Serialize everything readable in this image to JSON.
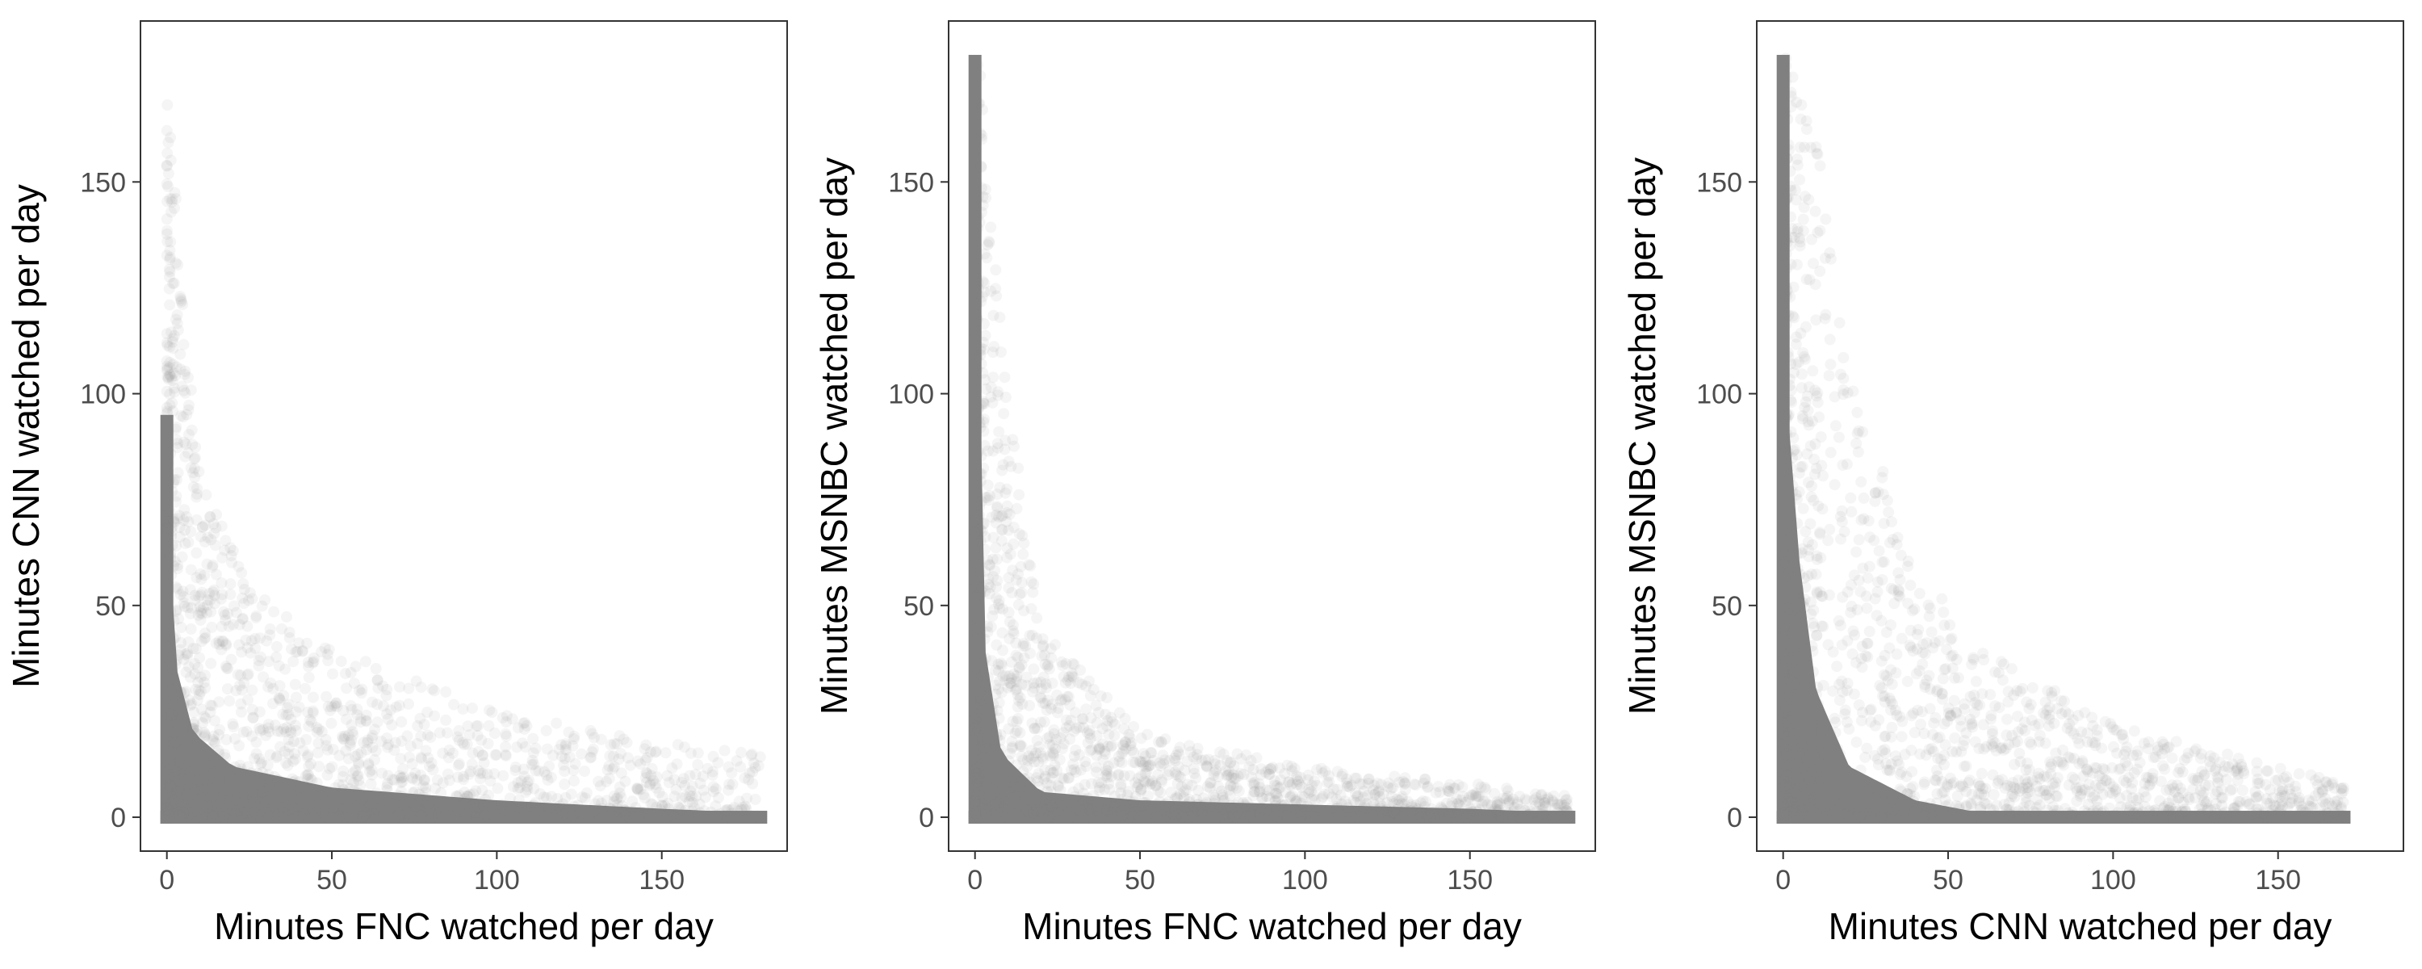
{
  "colors": {
    "point": "#808080",
    "panel_border": "#333333",
    "tick_text": "#4d4d4d",
    "axis_title": "#000000",
    "background": "#ffffff"
  },
  "chart_data": [
    {
      "type": "scatter",
      "xlabel": "Minutes FNC watched per day",
      "ylabel": "Minutes CNN watched per day",
      "xlim": [
        -8,
        188
      ],
      "ylim": [
        -8,
        188
      ],
      "xticks": [
        0,
        50,
        100,
        150
      ],
      "yticks": [
        0,
        50,
        100,
        150
      ],
      "grid": false,
      "point_alpha": 0.05,
      "density": {
        "shape": "L-shaped, dense near both axes",
        "y_edge_extent": 95,
        "x_edge_extent": 180,
        "core_envelope_curve": [
          [
            1,
            60
          ],
          [
            3,
            35
          ],
          [
            8,
            20
          ],
          [
            20,
            12
          ],
          [
            50,
            7
          ],
          [
            100,
            4
          ],
          [
            150,
            2
          ],
          [
            180,
            1
          ]
        ],
        "sparse_envelope_curve": [
          [
            1,
            170
          ],
          [
            5,
            120
          ],
          [
            10,
            80
          ],
          [
            25,
            55
          ],
          [
            50,
            40
          ],
          [
            100,
            25
          ],
          [
            150,
            18
          ],
          [
            180,
            15
          ]
        ]
      }
    },
    {
      "type": "scatter",
      "xlabel": "Minutes FNC watched per day",
      "ylabel": "Minutes MSNBC watched per day",
      "xlim": [
        -8,
        188
      ],
      "ylim": [
        -8,
        188
      ],
      "xticks": [
        0,
        50,
        100,
        150
      ],
      "yticks": [
        0,
        50,
        100,
        150
      ],
      "grid": false,
      "point_alpha": 0.05,
      "density": {
        "shape": "L-shaped, very tight to both axes",
        "y_edge_extent": 180,
        "x_edge_extent": 180,
        "core_envelope_curve": [
          [
            1,
            120
          ],
          [
            3,
            40
          ],
          [
            8,
            15
          ],
          [
            20,
            6
          ],
          [
            50,
            4
          ],
          [
            100,
            3
          ],
          [
            150,
            2
          ],
          [
            180,
            1
          ]
        ],
        "sparse_envelope_curve": [
          [
            1,
            180
          ],
          [
            5,
            150
          ],
          [
            10,
            100
          ],
          [
            20,
            45
          ],
          [
            50,
            20
          ],
          [
            100,
            12
          ],
          [
            150,
            8
          ],
          [
            180,
            5
          ]
        ]
      }
    },
    {
      "type": "scatter",
      "xlabel": "Minutes CNN watched per day",
      "ylabel": "Minutes MSNBC watched per day",
      "xlim": [
        -8,
        188
      ],
      "ylim": [
        -8,
        188
      ],
      "xticks": [
        0,
        50,
        100,
        150
      ],
      "yticks": [
        0,
        50,
        100,
        150
      ],
      "grid": false,
      "point_alpha": 0.05,
      "density": {
        "shape": "L-shaped, wide spread near origin",
        "y_edge_extent": 180,
        "x_edge_extent": 170,
        "core_envelope_curve": [
          [
            1,
            100
          ],
          [
            5,
            60
          ],
          [
            10,
            30
          ],
          [
            20,
            12
          ],
          [
            40,
            4
          ],
          [
            60,
            1
          ],
          [
            80,
            0.5
          ]
        ],
        "sparse_envelope_curve": [
          [
            1,
            180
          ],
          [
            10,
            160
          ],
          [
            20,
            110
          ],
          [
            40,
            60
          ],
          [
            60,
            40
          ],
          [
            100,
            22
          ],
          [
            150,
            12
          ],
          [
            170,
            8
          ]
        ]
      }
    }
  ]
}
